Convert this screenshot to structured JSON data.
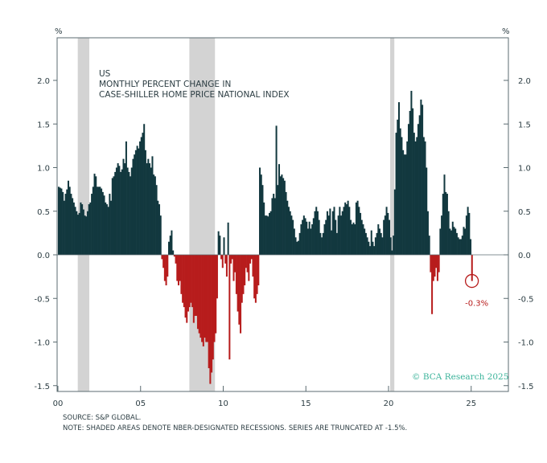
{
  "chart_data": {
    "type": "bar",
    "title": "US",
    "subtitle_lines": [
      "MONTHLY PERCENT CHANGE IN",
      "CASE-SHILLER HOME PRICE NATIONAL INDEX"
    ],
    "ylabel_left": "%",
    "ylabel_right": "%",
    "xlabel": "",
    "x_start": "2000-01",
    "frequency": "monthly",
    "xlim": [
      2000,
      2027.3
    ],
    "ylim": [
      -1.55,
      2.5
    ],
    "x_ticks": [
      {
        "value": 2000,
        "label": "00"
      },
      {
        "value": 2005,
        "label": "05"
      },
      {
        "value": 2010,
        "label": "10"
      },
      {
        "value": 2015,
        "label": "15"
      },
      {
        "value": 2020,
        "label": "20"
      },
      {
        "value": 2025,
        "label": "25"
      }
    ],
    "y_ticks": [
      {
        "value": 2.0,
        "label": "2.0"
      },
      {
        "value": 1.5,
        "label": "1.5"
      },
      {
        "value": 1.0,
        "label": "1.0"
      },
      {
        "value": 0.5,
        "label": "0.5"
      },
      {
        "value": 0.0,
        "label": "0.0"
      },
      {
        "value": -0.5,
        "label": "-0.5"
      },
      {
        "value": -1.0,
        "label": "-1.0"
      },
      {
        "value": -1.5,
        "label": "-1.5"
      }
    ],
    "grid": false,
    "colors": {
      "positive": "#12383f",
      "negative": "#b71c1c",
      "recession": "#d3d3d3",
      "axis": "#5b6b70"
    },
    "recessions": [
      [
        2001.2,
        2001.9
      ],
      [
        2007.95,
        2009.5
      ],
      [
        2020.1,
        2020.35
      ]
    ],
    "values": [
      0.78,
      0.77,
      0.76,
      0.72,
      0.62,
      0.7,
      0.75,
      0.85,
      0.78,
      0.7,
      0.65,
      0.6,
      0.55,
      0.5,
      0.46,
      0.48,
      0.6,
      0.58,
      0.52,
      0.45,
      0.44,
      0.5,
      0.58,
      0.6,
      0.7,
      0.78,
      0.93,
      0.9,
      0.78,
      0.78,
      0.78,
      0.76,
      0.72,
      0.68,
      0.6,
      0.58,
      0.55,
      0.7,
      0.62,
      0.88,
      0.9,
      0.95,
      1.0,
      1.05,
      1.02,
      0.95,
      0.98,
      1.1,
      1.05,
      1.3,
      1.0,
      0.95,
      0.9,
      1.0,
      1.1,
      1.15,
      1.2,
      1.25,
      1.22,
      1.3,
      1.35,
      1.4,
      1.5,
      1.2,
      1.05,
      1.1,
      1.05,
      1.0,
      1.13,
      0.92,
      0.9,
      0.8,
      0.62,
      0.58,
      0.45,
      -0.05,
      -0.15,
      -0.3,
      -0.35,
      -0.25,
      0.15,
      0.22,
      0.28,
      0.05,
      -0.02,
      -0.1,
      -0.3,
      -0.35,
      -0.3,
      -0.45,
      -0.55,
      -0.6,
      -0.72,
      -0.78,
      -0.65,
      -0.6,
      -0.55,
      -0.6,
      -0.78,
      -0.7,
      -0.7,
      -0.85,
      -0.9,
      -0.95,
      -1.0,
      -1.05,
      -0.95,
      -1.0,
      -1.0,
      -1.3,
      -1.48,
      -1.35,
      -1.2,
      -1.0,
      -0.9,
      -0.5,
      0.27,
      0.22,
      -0.05,
      -0.15,
      0.2,
      -0.1,
      -0.25,
      0.37,
      -1.2,
      -0.1,
      -0.05,
      -0.3,
      -0.2,
      -0.45,
      -0.65,
      -0.8,
      -0.9,
      -0.55,
      -0.45,
      -0.35,
      -0.15,
      -0.2,
      -0.3,
      -0.1,
      -0.05,
      -0.25,
      -0.5,
      -0.55,
      -0.45,
      -0.35,
      1.0,
      0.92,
      0.8,
      0.6,
      0.45,
      0.45,
      0.44,
      0.48,
      0.5,
      0.65,
      0.7,
      0.65,
      1.48,
      0.8,
      1.04,
      0.9,
      0.92,
      0.88,
      0.85,
      0.72,
      0.62,
      0.55,
      0.5,
      0.45,
      0.4,
      0.3,
      0.2,
      0.15,
      0.16,
      0.25,
      0.35,
      0.4,
      0.45,
      0.42,
      0.38,
      0.3,
      0.38,
      0.3,
      0.35,
      0.42,
      0.5,
      0.55,
      0.5,
      0.4,
      0.25,
      0.2,
      0.25,
      0.35,
      0.4,
      0.5,
      0.45,
      0.53,
      0.28,
      0.5,
      0.55,
      0.4,
      0.25,
      0.45,
      0.55,
      0.45,
      0.5,
      0.55,
      0.6,
      0.58,
      0.62,
      0.55,
      0.4,
      0.35,
      0.37,
      0.35,
      0.6,
      0.62,
      0.55,
      0.48,
      0.4,
      0.35,
      0.3,
      0.25,
      0.2,
      0.15,
      0.1,
      0.28,
      0.15,
      0.1,
      0.2,
      0.25,
      0.35,
      0.3,
      0.25,
      0.2,
      0.4,
      0.45,
      0.55,
      0.48,
      0.4,
      0.2,
      0.05,
      0.22,
      0.75,
      1.4,
      1.55,
      1.75,
      1.45,
      1.35,
      1.2,
      1.15,
      1.15,
      1.3,
      1.5,
      1.65,
      1.88,
      1.68,
      1.4,
      1.3,
      1.35,
      1.5,
      1.6,
      1.78,
      1.72,
      1.35,
      1.3,
      1.0,
      0.5,
      0.22,
      -0.2,
      -0.68,
      -0.3,
      -0.25,
      -0.15,
      -0.3,
      -0.2,
      0.3,
      0.45,
      0.7,
      0.92,
      0.72,
      0.7,
      0.5,
      0.3,
      0.28,
      0.38,
      0.32,
      0.3,
      0.25,
      0.2,
      0.18,
      0.18,
      0.22,
      0.32,
      0.3,
      0.45,
      0.55,
      0.48,
      0.18,
      -0.3
    ],
    "annotations": [
      {
        "x": "2025-01",
        "y": -0.3,
        "label": "-0.3%"
      }
    ]
  },
  "watermark": "© BCA Research 2025",
  "footer": {
    "source": "SOURCE: S&P GLOBAL.",
    "note": "NOTE: SHADED AREAS DENOTE NBER-DESIGNATED RECESSIONS. SERIES ARE TRUNCATED AT -1.5%."
  }
}
